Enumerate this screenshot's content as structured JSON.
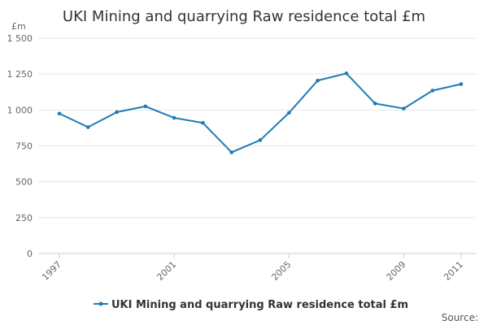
{
  "chart_data": {
    "type": "line",
    "title": "UKI Mining and quarrying Raw residence total £m",
    "ylabel": "£m",
    "xlabel": "",
    "x": [
      1997,
      1998,
      1999,
      2000,
      2001,
      2002,
      2003,
      2004,
      2005,
      2006,
      2007,
      2008,
      2009,
      2010,
      2011
    ],
    "x_tick_labels": [
      "1997",
      "2001",
      "2005",
      "2009",
      "2011"
    ],
    "ylim": [
      0,
      1500
    ],
    "y_tick_labels": [
      "0",
      "250",
      "500",
      "750",
      "1 000",
      "1 250",
      "1 500"
    ],
    "grid": true,
    "legend_position": "bottom-center",
    "series": [
      {
        "name": "UKI Mining and quarrying Raw residence total £m",
        "color": "#1f7bb6",
        "values": [
          975,
          880,
          985,
          1025,
          945,
          910,
          705,
          790,
          980,
          1205,
          1255,
          1045,
          1010,
          1135,
          1180
        ]
      }
    ]
  },
  "source_label": "Source:"
}
